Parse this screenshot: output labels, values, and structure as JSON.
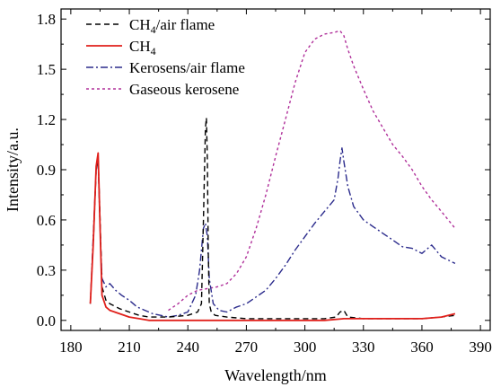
{
  "chart_data": {
    "type": "line",
    "title": "",
    "xlabel": "Wavelength/nm",
    "ylabel": "Intensity/a.u.",
    "xlim": [
      175,
      395
    ],
    "ylim": [
      -0.06,
      1.86
    ],
    "xticks": [
      180,
      210,
      240,
      270,
      300,
      330,
      360,
      390
    ],
    "yticks": [
      0.0,
      0.3,
      0.6,
      0.9,
      1.2,
      1.5,
      1.8
    ],
    "xtick_labels": [
      "180",
      "210",
      "240",
      "270",
      "300",
      "330",
      "360",
      "390"
    ],
    "ytick_labels": [
      "0.0",
      "0.3",
      "0.6",
      "0.9",
      "1.2",
      "1.5",
      "1.8"
    ],
    "grid": false,
    "legend_position": "top-left",
    "series": [
      {
        "name": "CH4/air flame",
        "label_main": "CH",
        "label_sub": "4",
        "label_rest": "/air flame",
        "color": "#000000",
        "dash": "6,4",
        "x": [
          190,
          191.5,
          193,
          194,
          195,
          196,
          198,
          200,
          205,
          210,
          215,
          220,
          230,
          240,
          245,
          247,
          248,
          249,
          249.5,
          250,
          250.5,
          251,
          252,
          254,
          260,
          270,
          280,
          290,
          300,
          310,
          316,
          318,
          320,
          322,
          330,
          340,
          350,
          360,
          370,
          377
        ],
        "y": [
          0.1,
          0.45,
          0.9,
          0.98,
          0.6,
          0.2,
          0.12,
          0.1,
          0.07,
          0.05,
          0.03,
          0.02,
          0.02,
          0.03,
          0.05,
          0.1,
          0.6,
          1.15,
          1.21,
          0.95,
          0.4,
          0.1,
          0.05,
          0.03,
          0.02,
          0.01,
          0.01,
          0.01,
          0.01,
          0.01,
          0.02,
          0.05,
          0.06,
          0.02,
          0.01,
          0.01,
          0.01,
          0.01,
          0.02,
          0.03
        ]
      },
      {
        "name": "CH4",
        "label_main": "CH",
        "label_sub": "4",
        "label_rest": "",
        "color": "#e0201b",
        "dash": "",
        "x": [
          190,
          191.5,
          193,
          194,
          195,
          196,
          198,
          200,
          205,
          210,
          215,
          220,
          230,
          240,
          250,
          260,
          270,
          280,
          290,
          300,
          310,
          320,
          330,
          340,
          350,
          360,
          370,
          377
        ],
        "y": [
          0.1,
          0.45,
          0.92,
          1.0,
          0.55,
          0.15,
          0.08,
          0.06,
          0.04,
          0.02,
          0.01,
          0.0,
          0.0,
          0.0,
          0.0,
          0.0,
          0.0,
          0.0,
          0.0,
          0.0,
          0.0,
          0.01,
          0.01,
          0.01,
          0.01,
          0.01,
          0.02,
          0.04
        ]
      },
      {
        "name": "Kerosens/air flame",
        "label_main": "Kerosens/air flame",
        "label_sub": "",
        "label_rest": "",
        "color": "#2b2b8c",
        "dash": "8,3,2,3",
        "x": [
          190,
          191.5,
          193,
          194,
          195,
          196,
          198,
          200,
          203,
          206,
          210,
          214,
          218,
          222,
          226,
          230,
          235,
          240,
          244,
          246,
          248,
          249,
          250,
          251,
          253,
          256,
          260,
          265,
          270,
          275,
          280,
          285,
          290,
          295,
          300,
          305,
          310,
          315,
          317,
          318,
          319,
          320,
          322,
          325,
          330,
          335,
          340,
          345,
          350,
          355,
          360,
          365,
          370,
          377
        ],
        "y": [
          0.1,
          0.5,
          0.9,
          0.95,
          0.55,
          0.25,
          0.2,
          0.22,
          0.18,
          0.15,
          0.12,
          0.08,
          0.06,
          0.04,
          0.03,
          0.02,
          0.03,
          0.05,
          0.15,
          0.3,
          0.55,
          0.58,
          0.5,
          0.25,
          0.1,
          0.06,
          0.05,
          0.08,
          0.1,
          0.14,
          0.18,
          0.25,
          0.33,
          0.42,
          0.5,
          0.58,
          0.65,
          0.72,
          0.85,
          0.95,
          1.03,
          0.95,
          0.8,
          0.68,
          0.6,
          0.56,
          0.52,
          0.48,
          0.44,
          0.43,
          0.4,
          0.45,
          0.38,
          0.34
        ]
      },
      {
        "name": "Gaseous kerosene",
        "label_main": "Gaseous kerosene",
        "label_sub": "",
        "label_rest": "",
        "color": "#b0309a",
        "dash": "3,3",
        "x": [
          230,
          235,
          240,
          245,
          250,
          255,
          260,
          265,
          270,
          275,
          280,
          285,
          290,
          295,
          300,
          305,
          310,
          315,
          318,
          320,
          322,
          325,
          330,
          335,
          340,
          345,
          350,
          355,
          360,
          365,
          370,
          377
        ],
        "y": [
          0.06,
          0.1,
          0.15,
          0.18,
          0.19,
          0.2,
          0.22,
          0.28,
          0.38,
          0.55,
          0.75,
          0.98,
          1.2,
          1.42,
          1.6,
          1.68,
          1.71,
          1.72,
          1.73,
          1.7,
          1.62,
          1.52,
          1.38,
          1.25,
          1.15,
          1.05,
          0.98,
          0.9,
          0.8,
          0.72,
          0.65,
          0.55
        ]
      }
    ]
  }
}
